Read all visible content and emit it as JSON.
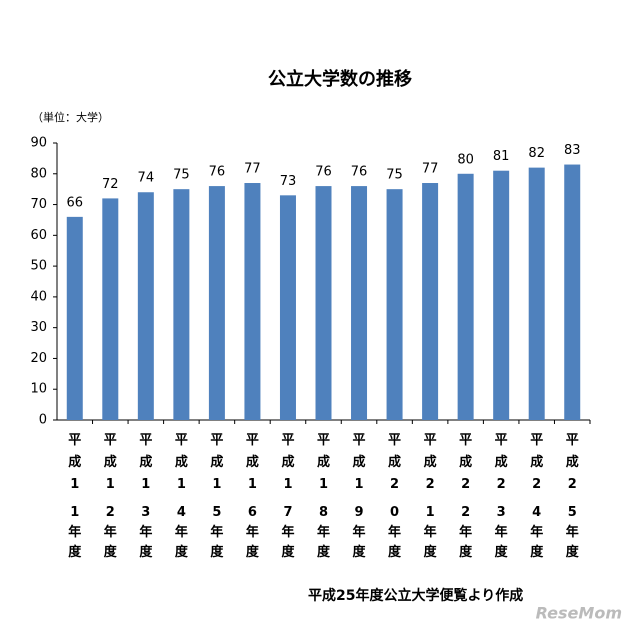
{
  "chart_data": {
    "type": "bar",
    "title": "公立大学数の推移",
    "unit_label": "（単位：大学）",
    "categories": [
      "平成11年度",
      "平成12年度",
      "平成13年度",
      "平成14年度",
      "平成15年度",
      "平成16年度",
      "平成17年度",
      "平成18年度",
      "平成19年度",
      "平成20年度",
      "平成21年度",
      "平成22年度",
      "平成23年度",
      "平成24年度",
      "平成25年度"
    ],
    "values": [
      66,
      72,
      74,
      75,
      76,
      77,
      73,
      76,
      76,
      75,
      77,
      80,
      81,
      82,
      83
    ],
    "color": "#4f81bd",
    "ylim": [
      0,
      90
    ],
    "yticks": [
      0,
      10,
      20,
      30,
      40,
      50,
      60,
      70,
      80,
      90
    ],
    "grid": false,
    "source_note": "平成25年度公立大学便覧より作成",
    "watermark": "ReseMom"
  }
}
